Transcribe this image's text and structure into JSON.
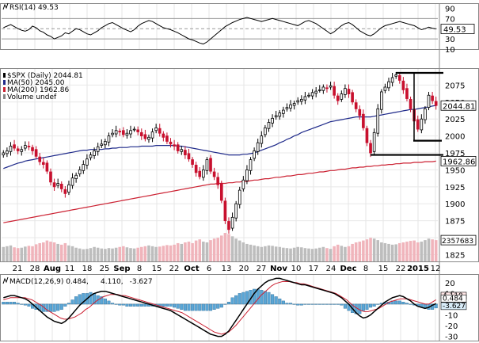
{
  "chart_data": [
    {
      "type": "line",
      "panel": "rsi",
      "legend": "RSI(14) 49.53",
      "current_value": "49.53",
      "ylim": [
        10,
        100
      ],
      "yticks": [
        "90",
        "70",
        "50",
        "30",
        "10"
      ],
      "levels": [
        70,
        50,
        30
      ],
      "series": [
        {
          "name": "RSI(14)",
          "values": [
            52,
            55,
            58,
            54,
            50,
            47,
            45,
            48,
            55,
            52,
            46,
            43,
            38,
            35,
            30,
            33,
            36,
            42,
            40,
            45,
            50,
            48,
            44,
            40,
            38,
            42,
            46,
            52,
            56,
            60,
            62,
            58,
            54,
            50,
            47,
            44,
            48,
            55,
            60,
            63,
            66,
            64,
            60,
            56,
            52,
            50,
            48,
            45,
            42,
            38,
            34,
            30,
            28,
            25,
            22,
            20,
            24,
            30,
            36,
            42,
            48,
            54,
            58,
            62,
            65,
            68,
            70,
            72,
            70,
            68,
            66,
            64,
            66,
            68,
            70,
            68,
            66,
            64,
            62,
            60,
            58,
            56,
            60,
            64,
            66,
            63,
            60,
            55,
            50,
            45,
            40,
            44,
            50,
            56,
            60,
            62,
            58,
            52,
            46,
            42,
            38,
            36,
            40,
            46,
            52,
            56,
            58,
            60,
            62,
            64,
            62,
            60,
            58,
            56,
            52,
            48,
            50,
            53,
            51,
            49.53
          ]
        }
      ]
    },
    {
      "type": "candlestick",
      "panel": "price",
      "legend": [
        {
          "label": "$SPX (Daily) 2044.81",
          "color": "#000000"
        },
        {
          "label": "MA(50) 2045.00",
          "color": "#1f2a8a"
        },
        {
          "label": "MA(200) 1962.86",
          "color": "#cc2233"
        },
        {
          "label": "Volume undef",
          "color": "#888888"
        }
      ],
      "price_label": "2044.81",
      "ma200_label": "1962.86",
      "volume_label": "2357683",
      "ylim": [
        1815,
        2100
      ],
      "yticks": [
        2075,
        2050,
        2025,
        2000,
        1975,
        1950,
        1925,
        1900,
        1875,
        1850,
        1825
      ],
      "x_labels": [
        "21",
        "28",
        "Aug",
        "11",
        "18",
        "25",
        "Sep",
        "8",
        "15",
        "22",
        "Oct",
        "6",
        "13",
        "20",
        "27",
        "Nov",
        "10",
        "17",
        "24",
        "Dec",
        "8",
        "15",
        "22",
        "2015",
        "12"
      ],
      "annotations": [
        {
          "type": "hline",
          "value": 2093,
          "x_from": 500,
          "x_to": 560
        },
        {
          "type": "hline",
          "value": 1972,
          "x_from": 468,
          "x_to": 560
        },
        {
          "type": "hline",
          "value": 1993,
          "x_from": 522,
          "x_to": 558
        },
        {
          "type": "vline",
          "x": 523,
          "from": 1993,
          "to": 2093
        }
      ],
      "closes": [
        1975,
        1978,
        1985,
        1982,
        1978,
        1980,
        1986,
        1984,
        1978,
        1970,
        1962,
        1958,
        1948,
        1932,
        1925,
        1930,
        1922,
        1915,
        1928,
        1938,
        1942,
        1950,
        1958,
        1966,
        1972,
        1978,
        1984,
        1988,
        1992,
        2000,
        2004,
        2008,
        2006,
        2002,
        2004,
        2008,
        2010,
        2006,
        2000,
        1996,
        1998,
        2006,
        2012,
        2004,
        1998,
        1992,
        1988,
        1985,
        1978,
        1980,
        1972,
        1966,
        1958,
        1946,
        1940,
        1950,
        1965,
        1948,
        1940,
        1928,
        1905,
        1875,
        1862,
        1880,
        1900,
        1920,
        1935,
        1950,
        1965,
        1978,
        1990,
        2000,
        2012,
        2020,
        2026,
        2030,
        2034,
        2038,
        2042,
        2046,
        2048,
        2052,
        2054,
        2058,
        2060,
        2064,
        2066,
        2068,
        2072,
        2070,
        2074,
        2060,
        2052,
        2062,
        2070,
        2062,
        2050,
        2040,
        2030,
        2012,
        1990,
        1975,
        2005,
        2040,
        2065,
        2072,
        2080,
        2086,
        2090,
        2082,
        2068,
        2055,
        2040,
        2022,
        2010,
        2025,
        2040,
        2060,
        2052,
        2044.81
      ],
      "ma50": [
        1952,
        1954,
        1956,
        1958,
        1960,
        1961,
        1963,
        1964,
        1965,
        1966,
        1967,
        1968,
        1969,
        1970,
        1971,
        1972,
        1973,
        1974,
        1975,
        1976,
        1977,
        1978,
        1979,
        1979,
        1980,
        1980,
        1980,
        1980,
        1981,
        1981,
        1982,
        1982,
        1983,
        1983,
        1983,
        1984,
        1984,
        1984,
        1985,
        1985,
        1985,
        1985,
        1986,
        1986,
        1986,
        1986,
        1986,
        1986,
        1985,
        1985,
        1984,
        1983,
        1982,
        1981,
        1980,
        1979,
        1978,
        1977,
        1976,
        1975,
        1974,
        1973,
        1972,
        1972,
        1972,
        1972,
        1973,
        1973,
        1974,
        1975,
        1977,
        1979,
        1981,
        1983,
        1985,
        1987,
        1990,
        1992,
        1995,
        1997,
        2000,
        2002,
        2005,
        2007,
        2009,
        2011,
        2013,
        2015,
        2017,
        2019,
        2021,
        2022,
        2023,
        2024,
        2025,
        2026,
        2027,
        2028,
        2028,
        2028,
        2028,
        2028,
        2029,
        2030,
        2031,
        2032,
        2033,
        2034,
        2035,
        2036,
        2037,
        2038,
        2039,
        2039,
        2040,
        2041,
        2042,
        2043,
        2044,
        2045
      ],
      "ma200": [
        1872,
        1873,
        1874,
        1875,
        1876,
        1877,
        1878,
        1879,
        1880,
        1881,
        1882,
        1883,
        1884,
        1885,
        1886,
        1887,
        1888,
        1889,
        1890,
        1891,
        1892,
        1893,
        1894,
        1895,
        1896,
        1897,
        1898,
        1899,
        1900,
        1901,
        1902,
        1903,
        1904,
        1905,
        1906,
        1907,
        1908,
        1909,
        1910,
        1911,
        1912,
        1913,
        1914,
        1915,
        1916,
        1917,
        1918,
        1919,
        1920,
        1921,
        1922,
        1923,
        1924,
        1925,
        1926,
        1927,
        1928,
        1929,
        1929,
        1930,
        1930,
        1930,
        1931,
        1931,
        1932,
        1932,
        1933,
        1933,
        1934,
        1935,
        1935,
        1936,
        1937,
        1937,
        1938,
        1939,
        1939,
        1940,
        1941,
        1941,
        1942,
        1943,
        1943,
        1944,
        1945,
        1945,
        1946,
        1947,
        1947,
        1948,
        1949,
        1949,
        1950,
        1951,
        1951,
        1952,
        1953,
        1953,
        1954,
        1954,
        1955,
        1955,
        1956,
        1956,
        1957,
        1957,
        1958,
        1958,
        1959,
        1959,
        1960,
        1960,
        1960,
        1961,
        1961,
        1961,
        1962,
        1962,
        1962,
        1962.86
      ],
      "volume": [
        0.38,
        0.4,
        0.42,
        0.37,
        0.35,
        0.36,
        0.39,
        0.41,
        0.4,
        0.45,
        0.48,
        0.5,
        0.55,
        0.52,
        0.5,
        0.46,
        0.44,
        0.48,
        0.42,
        0.4,
        0.36,
        0.34,
        0.32,
        0.33,
        0.35,
        0.38,
        0.36,
        0.34,
        0.33,
        0.35,
        0.34,
        0.36,
        0.38,
        0.4,
        0.37,
        0.35,
        0.34,
        0.36,
        0.38,
        0.4,
        0.42,
        0.4,
        0.38,
        0.39,
        0.41,
        0.43,
        0.42,
        0.44,
        0.48,
        0.46,
        0.5,
        0.52,
        0.48,
        0.55,
        0.58,
        0.52,
        0.5,
        0.56,
        0.6,
        0.62,
        0.68,
        0.75,
        0.72,
        0.66,
        0.6,
        0.55,
        0.5,
        0.46,
        0.44,
        0.42,
        0.4,
        0.38,
        0.4,
        0.42,
        0.41,
        0.39,
        0.38,
        0.36,
        0.35,
        0.34,
        0.36,
        0.38,
        0.37,
        0.35,
        0.34,
        0.33,
        0.34,
        0.36,
        0.38,
        0.35,
        0.33,
        0.4,
        0.44,
        0.41,
        0.38,
        0.4,
        0.46,
        0.5,
        0.52,
        0.55,
        0.58,
        0.62,
        0.6,
        0.56,
        0.5,
        0.48,
        0.46,
        0.44,
        0.45,
        0.48,
        0.5,
        0.52,
        0.54,
        0.55,
        0.5,
        0.52,
        0.56,
        0.6,
        0.58,
        0.56
      ]
    },
    {
      "type": "line",
      "panel": "macd",
      "legend": [
        {
          "label": "MACD(12,26,9) 0.484,",
          "color": "#000000"
        },
        {
          "label": "4.110,",
          "color": "#cc2233"
        },
        {
          "label": "-3.627",
          "color": "#3399cc"
        }
      ],
      "macd_label": "0.484",
      "signal_label": "4.110",
      "hist_label": "-3.627",
      "ylim": [
        -34,
        28
      ],
      "yticks": [
        20,
        10,
        0,
        -10,
        -20,
        -30
      ],
      "series": [
        {
          "name": "MACD(12,26,9)",
          "values": [
            6,
            7,
            8,
            8,
            7,
            6,
            5,
            3,
            0,
            -3,
            -6,
            -9,
            -12,
            -14,
            -16,
            -17,
            -18,
            -16,
            -13,
            -9,
            -5,
            -1,
            2,
            5,
            8,
            10,
            11,
            12,
            12,
            11,
            10,
            9,
            8,
            7,
            6,
            5,
            4,
            3,
            2,
            1,
            0,
            -1,
            -2,
            -3,
            -4,
            -5,
            -6,
            -8,
            -10,
            -12,
            -14,
            -16,
            -18,
            -20,
            -22,
            -24,
            -26,
            -28,
            -29,
            -30,
            -30,
            -28,
            -25,
            -20,
            -15,
            -10,
            -5,
            0,
            5,
            10,
            14,
            17,
            20,
            22,
            23,
            24,
            24,
            23,
            22,
            21,
            20,
            19,
            18,
            18,
            17,
            16,
            15,
            14,
            13,
            12,
            11,
            10,
            8,
            6,
            3,
            0,
            -4,
            -8,
            -11,
            -13,
            -12,
            -10,
            -7,
            -4,
            -1,
            2,
            4,
            6,
            7,
            8,
            7,
            5,
            3,
            0,
            -2,
            -3,
            -4,
            -3,
            -1,
            0.484
          ]
        },
        {
          "name": "Signal",
          "values": [
            4,
            5,
            6,
            6,
            6,
            6,
            6,
            5,
            4,
            2,
            0,
            -2,
            -5,
            -7,
            -9,
            -11,
            -13,
            -14,
            -14,
            -13,
            -12,
            -10,
            -8,
            -5,
            -3,
            0,
            3,
            5,
            7,
            8,
            9,
            9,
            9,
            8,
            8,
            7,
            6,
            5,
            4,
            3,
            2,
            1,
            0,
            -1,
            -2,
            -3,
            -4,
            -5,
            -6,
            -7,
            -8,
            -10,
            -12,
            -14,
            -16,
            -18,
            -20,
            -22,
            -24,
            -26,
            -27,
            -28,
            -27,
            -26,
            -23,
            -20,
            -16,
            -12,
            -8,
            -4,
            0,
            4,
            8,
            11,
            14,
            17,
            19,
            20,
            21,
            21,
            21,
            20,
            20,
            19,
            19,
            18,
            17,
            16,
            15,
            14,
            13,
            12,
            11,
            10,
            8,
            6,
            4,
            1,
            -2,
            -4,
            -6,
            -7,
            -7,
            -6,
            -5,
            -4,
            -2,
            0,
            2,
            3,
            4,
            5,
            5,
            5,
            4,
            3,
            2,
            1,
            0,
            0,
            2,
            4.11
          ]
        },
        {
          "name": "Histogram",
          "values": [
            2,
            2,
            2,
            2,
            1,
            0,
            -1,
            -2,
            -4,
            -5,
            -6,
            -7,
            -7,
            -7,
            -7,
            -6,
            -5,
            -2,
            1,
            4,
            7,
            9,
            10,
            10,
            11,
            10,
            8,
            7,
            5,
            3,
            1,
            0,
            -1,
            -1,
            -2,
            -2,
            -2,
            -2,
            -2,
            -2,
            -2,
            -2,
            -2,
            -2,
            -2,
            -2,
            -2,
            -3,
            -4,
            -5,
            -6,
            -6,
            -6,
            -6,
            -6,
            -6,
            -6,
            -6,
            -5,
            -4,
            -3,
            0,
            2,
            6,
            8,
            10,
            11,
            12,
            13,
            14,
            14,
            13,
            12,
            11,
            9,
            7,
            5,
            3,
            1,
            1,
            0,
            -1,
            -1,
            0,
            0,
            0,
            0,
            0,
            0,
            0,
            0,
            0,
            0,
            -1,
            -4,
            -6,
            -8,
            -9,
            -9,
            -6,
            -5,
            -3,
            -2,
            0,
            1,
            2,
            2,
            3,
            3,
            3,
            2,
            1,
            0,
            -1,
            -2,
            -3,
            -4,
            -5,
            -5,
            -3.627
          ]
        }
      ]
    }
  ]
}
